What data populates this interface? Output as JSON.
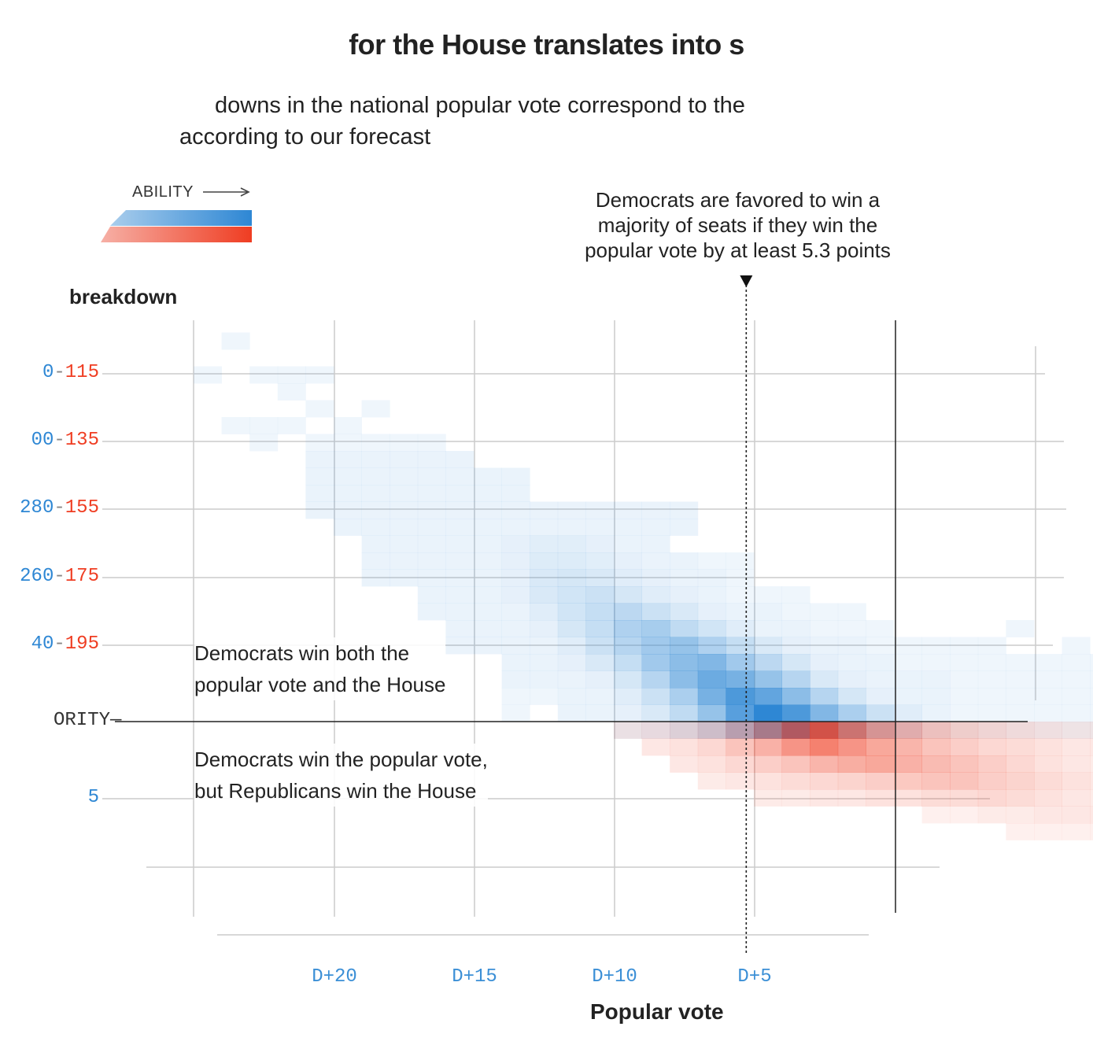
{
  "title": "for the House translates into s",
  "subtitle": "downs in the national popular vote correspond to the according to our forecast",
  "subtitle_lines": [
    "downs in the national popular vote correspond to the",
    "according to our forecast"
  ],
  "legend": {
    "label": "ABILITY",
    "colors": {
      "dem_light": "#a9cdec",
      "dem_dark": "#2e87d4",
      "rep_light": "#f6b0a6",
      "rep_dark": "#ef3d22"
    }
  },
  "annotation_top": [
    "Democrats are favored to win a",
    "majority of seats if they win the",
    "popular vote by at least 5.3 points"
  ],
  "y_title": "breakdown",
  "x_title": "Popular vote",
  "annotation_both": [
    "Democrats win both the",
    "popular vote and the House"
  ],
  "annotation_split": [
    "Democrats win the popular vote,",
    "but Republicans win the House"
  ],
  "chart_data": {
    "type": "heatmap",
    "x_tick_labels": [
      "D+20",
      "D+15",
      "D+10",
      "D+5"
    ],
    "x_tick_values": [
      20,
      15,
      10,
      5
    ],
    "x_range": [
      25,
      -1
    ],
    "y_tick_labels": [
      {
        "text": "0-115",
        "dem": "0",
        "rep": "115"
      },
      {
        "text": "00-135",
        "dem": "00",
        "rep": "135"
      },
      {
        "text": "280-155",
        "dem": "280",
        "rep": "155"
      },
      {
        "text": "260-175",
        "dem": "260",
        "rep": "175"
      },
      {
        "text": "40-195",
        "dem": "40",
        "rep": "195"
      },
      {
        "text": "ORITY",
        "dem": "",
        "rep": ""
      },
      {
        "text": "5",
        "dem": "5",
        "rep": ""
      }
    ],
    "majority_label": "ORITY",
    "threshold_vote_margin": 5.3,
    "colors": {
      "dem": "#2e87d4",
      "rep": "#ef3d22",
      "grid": "#cccccc"
    }
  }
}
